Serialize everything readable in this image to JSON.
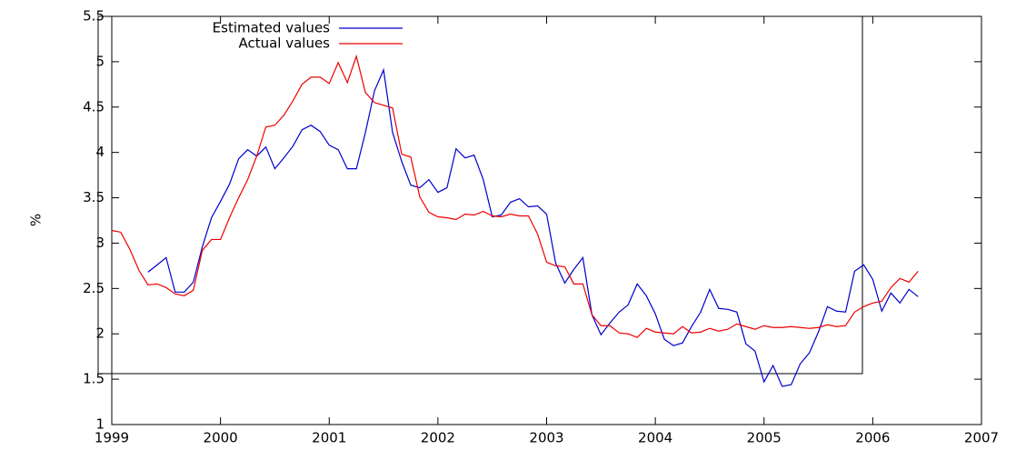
{
  "chart_data": {
    "type": "line",
    "y_label": "%",
    "x": [
      1999,
      1999.083,
      1999.167,
      1999.25,
      1999.333,
      1999.417,
      1999.5,
      1999.583,
      1999.667,
      1999.75,
      1999.833,
      1999.917,
      2000,
      2000.083,
      2000.167,
      2000.25,
      2000.333,
      2000.417,
      2000.5,
      2000.583,
      2000.667,
      2000.75,
      2000.833,
      2000.917,
      2001,
      2001.083,
      2001.167,
      2001.25,
      2001.333,
      2001.417,
      2001.5,
      2001.583,
      2001.667,
      2001.75,
      2001.833,
      2001.917,
      2002,
      2002.083,
      2002.167,
      2002.25,
      2002.333,
      2002.417,
      2002.5,
      2002.583,
      2002.667,
      2002.75,
      2002.833,
      2002.917,
      2003,
      2003.083,
      2003.167,
      2003.25,
      2003.333,
      2003.417,
      2003.5,
      2003.583,
      2003.667,
      2003.75,
      2003.833,
      2003.917,
      2004,
      2004.083,
      2004.167,
      2004.25,
      2004.333,
      2004.417,
      2004.5,
      2004.583,
      2004.667,
      2004.75,
      2004.833,
      2004.917,
      2005,
      2005.083,
      2005.167,
      2005.25,
      2005.333,
      2005.417,
      2005.5,
      2005.583,
      2005.667,
      2005.75,
      2005.833,
      2005.917,
      2006,
      2006.083,
      2006.167,
      2006.25,
      2006.333,
      2006.417
    ],
    "series": [
      {
        "name": "Estimated values",
        "color": "#0000cc",
        "values": [
          null,
          null,
          null,
          null,
          2.68,
          2.76,
          2.84,
          2.46,
          2.46,
          2.57,
          2.96,
          3.28,
          3.46,
          3.65,
          3.93,
          4.03,
          3.96,
          4.06,
          3.82,
          3.94,
          4.07,
          4.25,
          4.3,
          4.23,
          4.08,
          4.03,
          3.82,
          3.82,
          4.22,
          4.68,
          4.91,
          4.22,
          3.9,
          3.64,
          3.61,
          3.7,
          3.56,
          3.61,
          4.04,
          3.94,
          3.97,
          3.7,
          3.29,
          3.31,
          3.45,
          3.49,
          3.4,
          3.41,
          3.32,
          2.78,
          2.56,
          2.71,
          2.84,
          2.21,
          1.99,
          2.12,
          2.24,
          2.32,
          2.55,
          2.42,
          2.22,
          1.94,
          1.87,
          1.9,
          2.08,
          2.24,
          2.49,
          2.28,
          2.27,
          2.24,
          1.89,
          1.81,
          1.47,
          1.65,
          1.42,
          1.44,
          1.67,
          1.79,
          2.02,
          2.3,
          2.25,
          2.24,
          2.69,
          2.76,
          2.6,
          2.25,
          2.45,
          2.34,
          2.49,
          2.41
        ]
      },
      {
        "name": "Actual values",
        "color": "#ee0000",
        "values": [
          3.14,
          3.12,
          2.93,
          2.7,
          2.54,
          2.55,
          2.51,
          2.44,
          2.42,
          2.48,
          2.92,
          3.04,
          3.04,
          3.28,
          3.5,
          3.7,
          3.96,
          4.28,
          4.3,
          4.41,
          4.57,
          4.75,
          4.83,
          4.83,
          4.76,
          4.99,
          4.77,
          5.06,
          4.66,
          4.55,
          4.52,
          4.49,
          3.98,
          3.95,
          3.51,
          3.34,
          3.29,
          3.28,
          3.26,
          3.32,
          3.31,
          3.35,
          3.3,
          3.29,
          3.32,
          3.3,
          3.3,
          3.1,
          2.79,
          2.75,
          2.74,
          2.55,
          2.55,
          2.21,
          2.09,
          2.09,
          2.01,
          2.0,
          1.96,
          2.06,
          2.02,
          2.01,
          2.0,
          2.08,
          2.01,
          2.02,
          2.06,
          2.03,
          2.05,
          2.11,
          2.08,
          2.05,
          2.09,
          2.07,
          2.07,
          2.08,
          2.07,
          2.06,
          2.07,
          2.1,
          2.08,
          2.09,
          2.24,
          2.3,
          2.34,
          2.36,
          2.51,
          2.61,
          2.57,
          2.69
        ]
      }
    ],
    "xlim": [
      1999,
      2007
    ],
    "xticks": [
      1999,
      2000,
      2001,
      2002,
      2003,
      2004,
      2005,
      2006,
      2007
    ],
    "ylim": [
      1,
      5.5
    ],
    "yticks": [
      1,
      1.5,
      2,
      2.5,
      3,
      3.5,
      4,
      4.5,
      5,
      5.5
    ],
    "legend": "top-left"
  }
}
